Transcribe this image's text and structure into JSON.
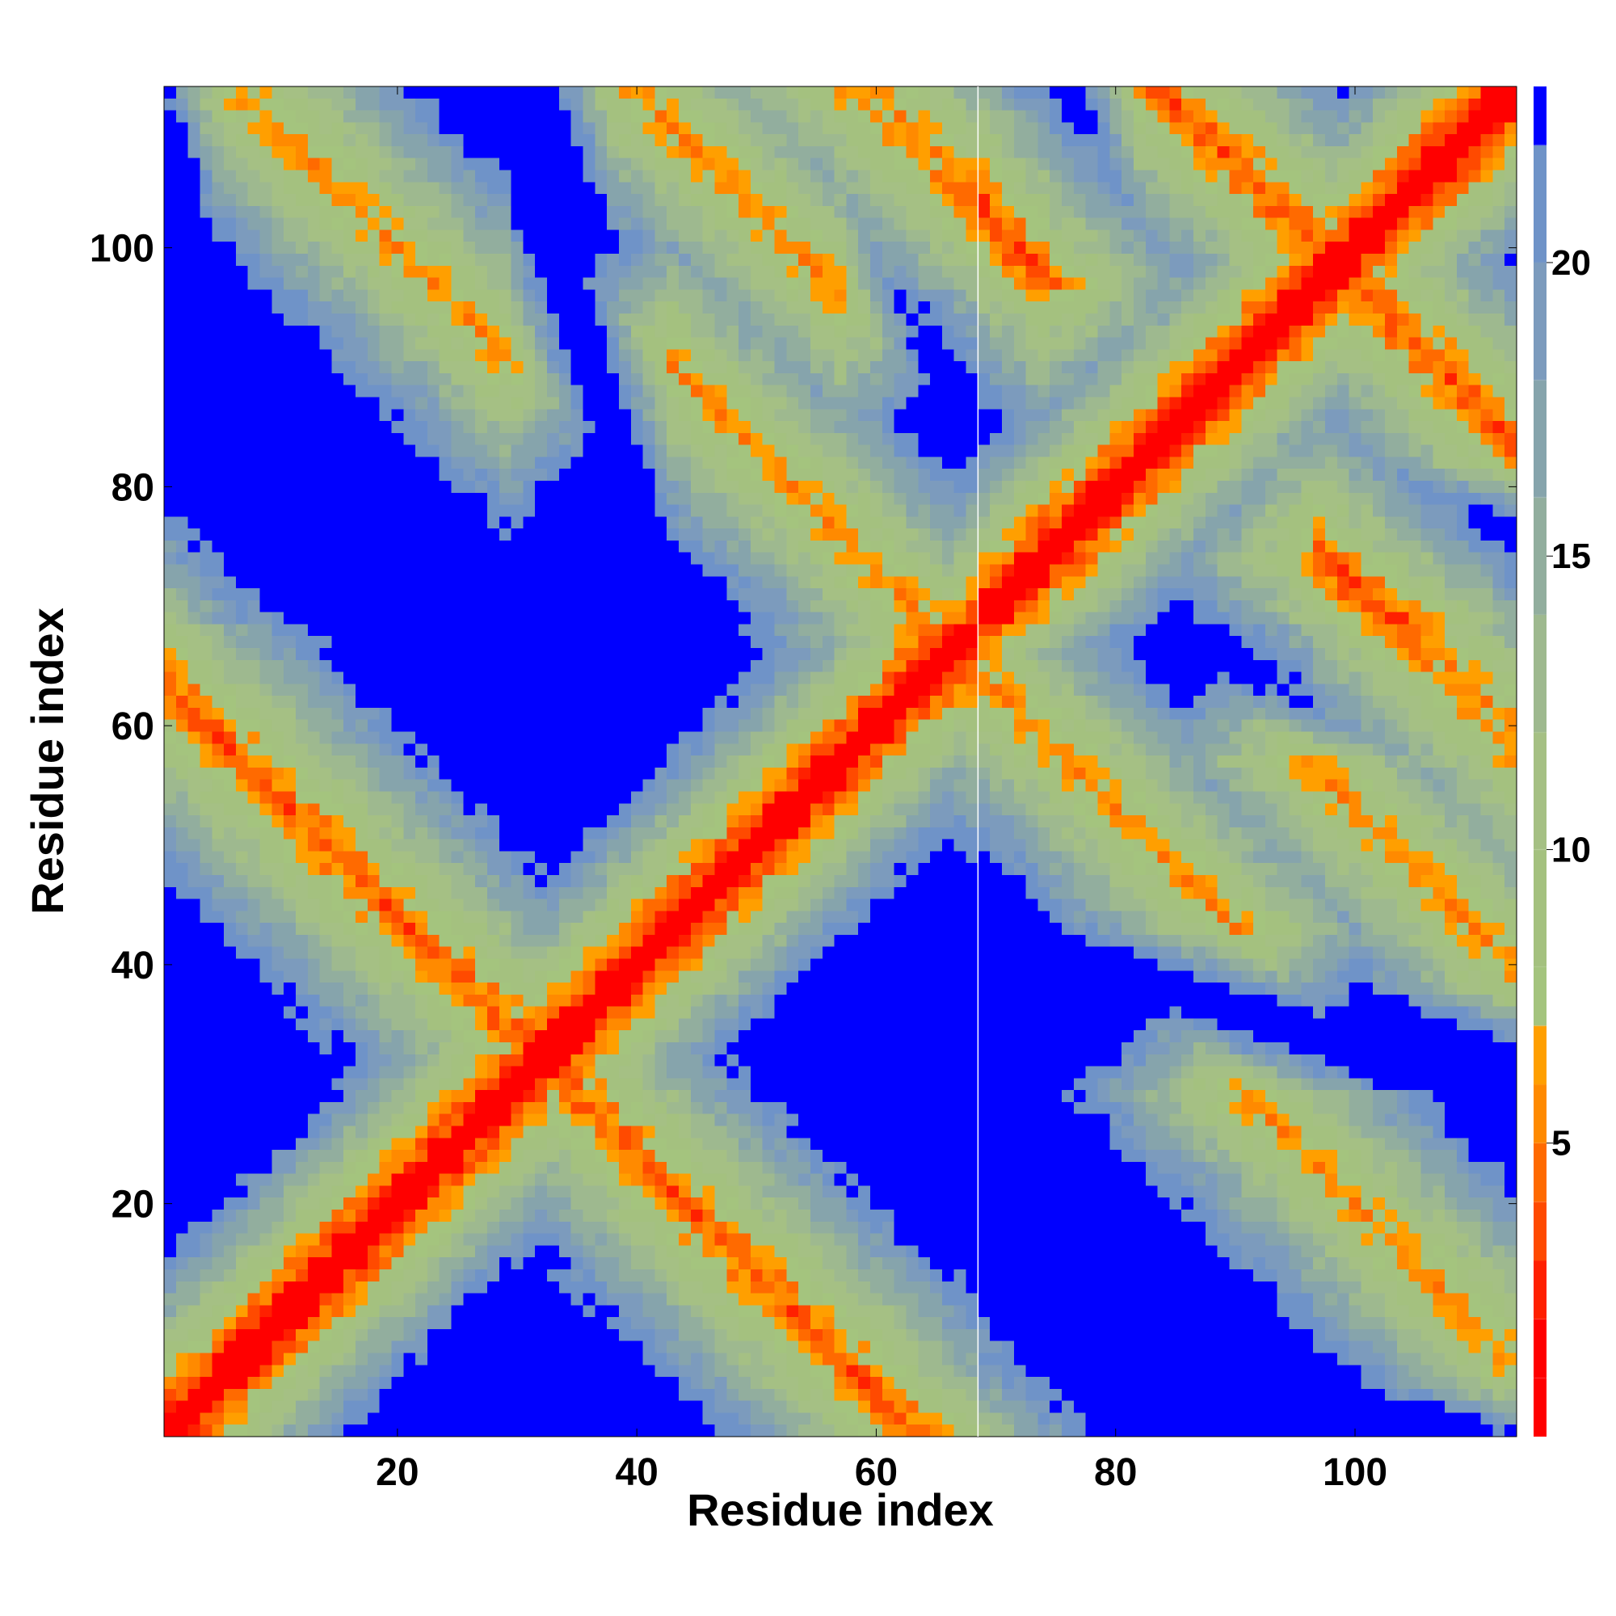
{
  "chart_data": {
    "type": "heatmap",
    "title": "",
    "xlabel": "Residue index",
    "ylabel": "Residue index",
    "xlim": [
      0.5,
      113.5
    ],
    "ylim": [
      0.5,
      113.5
    ],
    "xticks": [
      20,
      40,
      60,
      80,
      100
    ],
    "xtick_labels": [
      "20",
      "40",
      "60",
      "80",
      "100"
    ],
    "yticks": [
      20,
      40,
      60,
      80,
      100
    ],
    "ytick_labels": [
      "20",
      "40",
      "60",
      "80",
      "100"
    ],
    "colorbar": {
      "range": [
        0,
        23
      ],
      "ticks": [
        5,
        10,
        15,
        20
      ],
      "tick_labels": [
        "5",
        "10",
        "15",
        "20"
      ],
      "boundaries": [
        0,
        1,
        2,
        3,
        4,
        5,
        6,
        7,
        8,
        10,
        12,
        14,
        16,
        18,
        20,
        22,
        23
      ],
      "colors": [
        "#ff0000",
        "#ff0000",
        "#ff2000",
        "#ff4a00",
        "#ff6a00",
        "#ff8a00",
        "#ff9f00",
        "#a4c47e",
        "#a4c17f",
        "#a5c084",
        "#9eb98f",
        "#92ae9e",
        "#86a4ac",
        "#7c9bbd",
        "#6f93c8",
        "#0000ff"
      ]
    },
    "unit_break_after_residue": 68,
    "grid": false,
    "legend": "none",
    "structure": {
      "diagonal_band": [
        {
          "from": 1,
          "to": 113
        }
      ],
      "antiparallel_strands": [
        {
          "i_range": [
            1,
            30
          ],
          "j_range": [
            63,
            34
          ]
        },
        {
          "i_range": [
            7,
            27
          ],
          "j_range": [
            113,
            93
          ]
        },
        {
          "i_range": [
            40,
            55
          ],
          "j_range": [
            113,
            98
          ]
        },
        {
          "i_range": [
            45,
            65
          ],
          "j_range": [
            88,
            68
          ]
        },
        {
          "i_range": [
            60,
            68
          ],
          "j_range": [
            113,
            103
          ]
        },
        {
          "i_range": [
            69,
            72
          ],
          "j_range": [
            103,
            100
          ]
        },
        {
          "i_range": [
            84,
            96
          ],
          "j_range": [
            113,
            101
          ]
        },
        {
          "i_range": [
            99,
            112
          ],
          "j_range": [
            72,
            59
          ]
        }
      ]
    }
  }
}
